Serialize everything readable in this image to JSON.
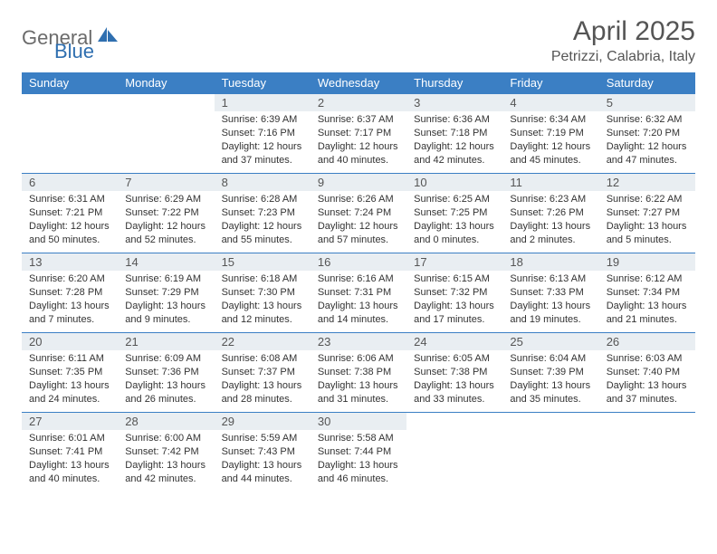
{
  "brand": {
    "name_a": "General",
    "name_b": "Blue"
  },
  "title": "April 2025",
  "location": "Petrizzi, Calabria, Italy",
  "colors": {
    "header_bg": "#3b7fc4",
    "header_fg": "#ffffff",
    "daynum_bg": "#e9eef2",
    "text": "#333333",
    "accent": "#3b7fc4"
  },
  "day_headers": [
    "Sunday",
    "Monday",
    "Tuesday",
    "Wednesday",
    "Thursday",
    "Friday",
    "Saturday"
  ],
  "weeks": [
    [
      null,
      null,
      {
        "n": "1",
        "sunrise": "6:39 AM",
        "sunset": "7:16 PM",
        "daylight": "12 hours and 37 minutes."
      },
      {
        "n": "2",
        "sunrise": "6:37 AM",
        "sunset": "7:17 PM",
        "daylight": "12 hours and 40 minutes."
      },
      {
        "n": "3",
        "sunrise": "6:36 AM",
        "sunset": "7:18 PM",
        "daylight": "12 hours and 42 minutes."
      },
      {
        "n": "4",
        "sunrise": "6:34 AM",
        "sunset": "7:19 PM",
        "daylight": "12 hours and 45 minutes."
      },
      {
        "n": "5",
        "sunrise": "6:32 AM",
        "sunset": "7:20 PM",
        "daylight": "12 hours and 47 minutes."
      }
    ],
    [
      {
        "n": "6",
        "sunrise": "6:31 AM",
        "sunset": "7:21 PM",
        "daylight": "12 hours and 50 minutes."
      },
      {
        "n": "7",
        "sunrise": "6:29 AM",
        "sunset": "7:22 PM",
        "daylight": "12 hours and 52 minutes."
      },
      {
        "n": "8",
        "sunrise": "6:28 AM",
        "sunset": "7:23 PM",
        "daylight": "12 hours and 55 minutes."
      },
      {
        "n": "9",
        "sunrise": "6:26 AM",
        "sunset": "7:24 PM",
        "daylight": "12 hours and 57 minutes."
      },
      {
        "n": "10",
        "sunrise": "6:25 AM",
        "sunset": "7:25 PM",
        "daylight": "13 hours and 0 minutes."
      },
      {
        "n": "11",
        "sunrise": "6:23 AM",
        "sunset": "7:26 PM",
        "daylight": "13 hours and 2 minutes."
      },
      {
        "n": "12",
        "sunrise": "6:22 AM",
        "sunset": "7:27 PM",
        "daylight": "13 hours and 5 minutes."
      }
    ],
    [
      {
        "n": "13",
        "sunrise": "6:20 AM",
        "sunset": "7:28 PM",
        "daylight": "13 hours and 7 minutes."
      },
      {
        "n": "14",
        "sunrise": "6:19 AM",
        "sunset": "7:29 PM",
        "daylight": "13 hours and 9 minutes."
      },
      {
        "n": "15",
        "sunrise": "6:18 AM",
        "sunset": "7:30 PM",
        "daylight": "13 hours and 12 minutes."
      },
      {
        "n": "16",
        "sunrise": "6:16 AM",
        "sunset": "7:31 PM",
        "daylight": "13 hours and 14 minutes."
      },
      {
        "n": "17",
        "sunrise": "6:15 AM",
        "sunset": "7:32 PM",
        "daylight": "13 hours and 17 minutes."
      },
      {
        "n": "18",
        "sunrise": "6:13 AM",
        "sunset": "7:33 PM",
        "daylight": "13 hours and 19 minutes."
      },
      {
        "n": "19",
        "sunrise": "6:12 AM",
        "sunset": "7:34 PM",
        "daylight": "13 hours and 21 minutes."
      }
    ],
    [
      {
        "n": "20",
        "sunrise": "6:11 AM",
        "sunset": "7:35 PM",
        "daylight": "13 hours and 24 minutes."
      },
      {
        "n": "21",
        "sunrise": "6:09 AM",
        "sunset": "7:36 PM",
        "daylight": "13 hours and 26 minutes."
      },
      {
        "n": "22",
        "sunrise": "6:08 AM",
        "sunset": "7:37 PM",
        "daylight": "13 hours and 28 minutes."
      },
      {
        "n": "23",
        "sunrise": "6:06 AM",
        "sunset": "7:38 PM",
        "daylight": "13 hours and 31 minutes."
      },
      {
        "n": "24",
        "sunrise": "6:05 AM",
        "sunset": "7:38 PM",
        "daylight": "13 hours and 33 minutes."
      },
      {
        "n": "25",
        "sunrise": "6:04 AM",
        "sunset": "7:39 PM",
        "daylight": "13 hours and 35 minutes."
      },
      {
        "n": "26",
        "sunrise": "6:03 AM",
        "sunset": "7:40 PM",
        "daylight": "13 hours and 37 minutes."
      }
    ],
    [
      {
        "n": "27",
        "sunrise": "6:01 AM",
        "sunset": "7:41 PM",
        "daylight": "13 hours and 40 minutes."
      },
      {
        "n": "28",
        "sunrise": "6:00 AM",
        "sunset": "7:42 PM",
        "daylight": "13 hours and 42 minutes."
      },
      {
        "n": "29",
        "sunrise": "5:59 AM",
        "sunset": "7:43 PM",
        "daylight": "13 hours and 44 minutes."
      },
      {
        "n": "30",
        "sunrise": "5:58 AM",
        "sunset": "7:44 PM",
        "daylight": "13 hours and 46 minutes."
      },
      null,
      null,
      null
    ]
  ],
  "labels": {
    "sunrise_prefix": "Sunrise: ",
    "sunset_prefix": "Sunset: ",
    "daylight_prefix": "Daylight: "
  }
}
